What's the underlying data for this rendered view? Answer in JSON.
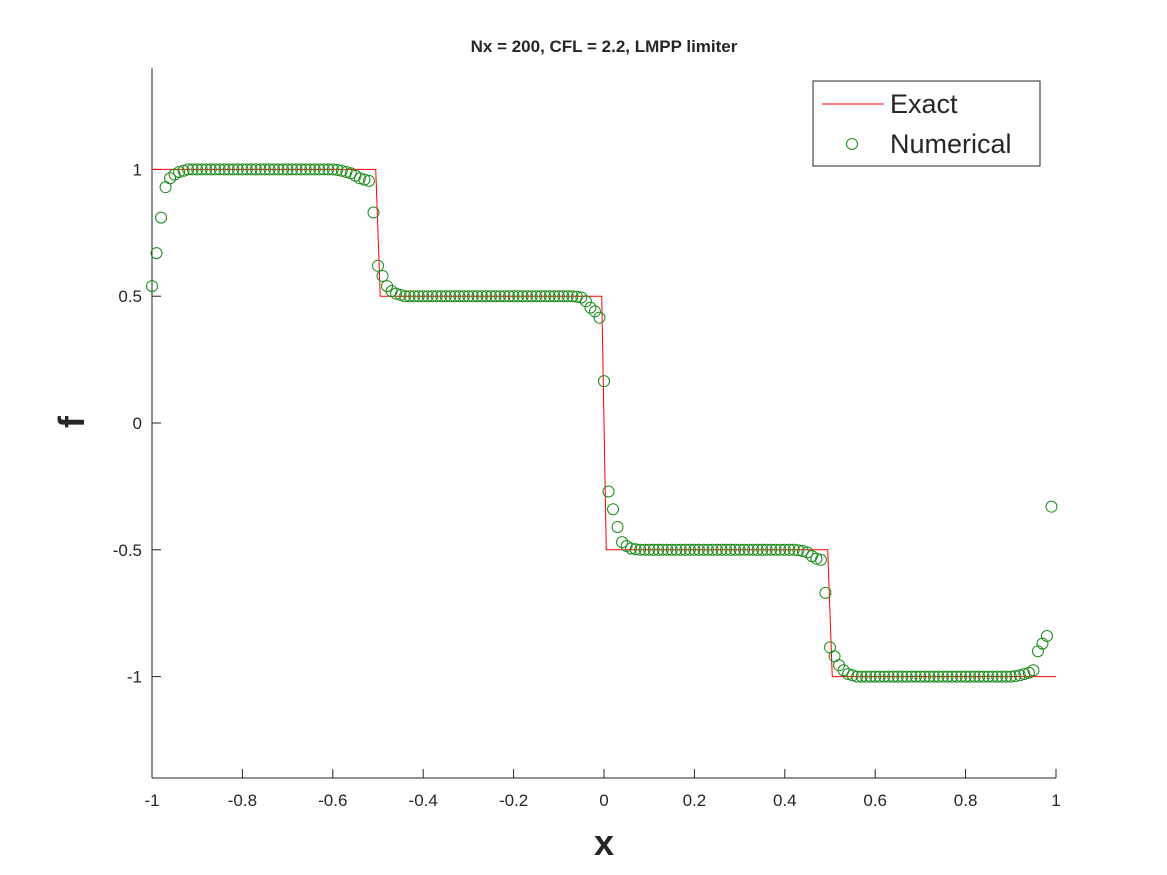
{
  "chart_data": {
    "type": "line",
    "title": "Nx = 200, CFL = 2.2, LMPP limiter",
    "x_label": "x",
    "y_label": "f",
    "xlim": [
      -1,
      1
    ],
    "ylim": [
      -1.4,
      1.4
    ],
    "xticks": [
      -1,
      -0.8,
      -0.6,
      -0.4,
      -0.2,
      0,
      0.2,
      0.4,
      0.6,
      0.8,
      1
    ],
    "yticks": [
      -1,
      -0.5,
      0,
      0.5,
      1
    ],
    "grid": false,
    "legend": "northeast",
    "series": [
      {
        "name": "Exact",
        "color": "#ff0000",
        "marker": "line",
        "x": [
          -1,
          -0.505,
          -0.495,
          -0.005,
          0.005,
          0.495,
          0.505,
          1
        ],
        "values": [
          1,
          1,
          0.5,
          0.5,
          -0.5,
          -0.5,
          -1,
          -1
        ]
      },
      {
        "name": "Numerical",
        "color": "#1a8a1a",
        "marker": "circle",
        "x": [
          -1,
          -0.99,
          -0.98,
          -0.97,
          -0.96,
          -0.95,
          -0.94,
          -0.93,
          -0.92,
          -0.91,
          -0.9,
          -0.89,
          -0.88,
          -0.87,
          -0.86,
          -0.85,
          -0.84,
          -0.83,
          -0.82,
          -0.81,
          -0.8,
          -0.79,
          -0.78,
          -0.77,
          -0.76,
          -0.75,
          -0.74,
          -0.73,
          -0.72,
          -0.71,
          -0.7,
          -0.69,
          -0.68,
          -0.67,
          -0.66,
          -0.65,
          -0.64,
          -0.63,
          -0.62,
          -0.61,
          -0.6,
          -0.59,
          -0.58,
          -0.57,
          -0.56,
          -0.55,
          -0.54,
          -0.53,
          -0.52,
          -0.51,
          -0.5,
          -0.49,
          -0.48,
          -0.47,
          -0.46,
          -0.45,
          -0.44,
          -0.43,
          -0.42,
          -0.41,
          -0.4,
          -0.39,
          -0.38,
          -0.37,
          -0.36,
          -0.35,
          -0.34,
          -0.33,
          -0.32,
          -0.31,
          -0.3,
          -0.29,
          -0.28,
          -0.27,
          -0.26,
          -0.25,
          -0.24,
          -0.23,
          -0.22,
          -0.21,
          -0.2,
          -0.19,
          -0.18,
          -0.17,
          -0.16,
          -0.15,
          -0.14,
          -0.13,
          -0.12,
          -0.11,
          -0.1,
          -0.09,
          -0.08,
          -0.07,
          -0.06,
          -0.05,
          -0.04,
          -0.03,
          -0.02,
          -0.01,
          0,
          0.01,
          0.02,
          0.03,
          0.04,
          0.05,
          0.06,
          0.07,
          0.08,
          0.09,
          0.1,
          0.11,
          0.12,
          0.13,
          0.14,
          0.15,
          0.16,
          0.17,
          0.18,
          0.19,
          0.2,
          0.21,
          0.22,
          0.23,
          0.24,
          0.25,
          0.26,
          0.27,
          0.28,
          0.29,
          0.3,
          0.31,
          0.32,
          0.33,
          0.34,
          0.35,
          0.36,
          0.37,
          0.38,
          0.39,
          0.4,
          0.41,
          0.42,
          0.43,
          0.44,
          0.45,
          0.46,
          0.47,
          0.48,
          0.49,
          0.5,
          0.51,
          0.52,
          0.53,
          0.54,
          0.55,
          0.56,
          0.57,
          0.58,
          0.59,
          0.6,
          0.61,
          0.62,
          0.63,
          0.64,
          0.65,
          0.66,
          0.67,
          0.68,
          0.69,
          0.7,
          0.71,
          0.72,
          0.73,
          0.74,
          0.75,
          0.76,
          0.77,
          0.78,
          0.79,
          0.8,
          0.81,
          0.82,
          0.83,
          0.84,
          0.85,
          0.86,
          0.87,
          0.88,
          0.89,
          0.9,
          0.91,
          0.92,
          0.93,
          0.94,
          0.95,
          0.96,
          0.97,
          0.98,
          0.99
        ],
        "values": [
          0.54,
          0.67,
          0.81,
          0.93,
          0.965,
          0.98,
          0.99,
          0.995,
          1,
          1,
          1,
          1,
          1,
          1,
          1,
          1,
          1,
          1,
          1,
          1,
          1,
          1,
          1,
          1,
          1,
          1,
          1,
          1,
          1,
          1,
          1,
          1,
          1,
          1,
          1,
          1,
          1,
          1,
          1,
          1,
          1,
          0.998,
          0.995,
          0.99,
          0.985,
          0.975,
          0.965,
          0.96,
          0.955,
          0.83,
          0.62,
          0.58,
          0.54,
          0.52,
          0.51,
          0.505,
          0.5,
          0.5,
          0.5,
          0.5,
          0.5,
          0.5,
          0.5,
          0.5,
          0.5,
          0.5,
          0.5,
          0.5,
          0.5,
          0.5,
          0.5,
          0.5,
          0.5,
          0.5,
          0.5,
          0.5,
          0.5,
          0.5,
          0.5,
          0.5,
          0.5,
          0.5,
          0.5,
          0.5,
          0.5,
          0.5,
          0.5,
          0.5,
          0.5,
          0.5,
          0.5,
          0.5,
          0.5,
          0.5,
          0.498,
          0.495,
          0.48,
          0.455,
          0.44,
          0.415,
          0.165,
          -0.27,
          -0.34,
          -0.41,
          -0.47,
          -0.485,
          -0.495,
          -0.498,
          -0.5,
          -0.5,
          -0.5,
          -0.5,
          -0.5,
          -0.5,
          -0.5,
          -0.5,
          -0.5,
          -0.5,
          -0.5,
          -0.5,
          -0.5,
          -0.5,
          -0.5,
          -0.5,
          -0.5,
          -0.5,
          -0.5,
          -0.5,
          -0.5,
          -0.5,
          -0.5,
          -0.5,
          -0.5,
          -0.5,
          -0.5,
          -0.5,
          -0.5,
          -0.5,
          -0.5,
          -0.5,
          -0.5,
          -0.5,
          -0.5,
          -0.502,
          -0.505,
          -0.51,
          -0.525,
          -0.535,
          -0.54,
          -0.67,
          -0.885,
          -0.92,
          -0.955,
          -0.975,
          -0.99,
          -0.995,
          -1,
          -1,
          -1,
          -1,
          -1,
          -1,
          -1,
          -1,
          -1,
          -1,
          -1,
          -1,
          -1,
          -1,
          -1,
          -1,
          -1,
          -1,
          -1,
          -1,
          -1,
          -1,
          -1,
          -1,
          -1,
          -1,
          -1,
          -1,
          -1,
          -1,
          -1,
          -1,
          -1,
          -1,
          -1,
          -0.998,
          -0.995,
          -0.99,
          -0.985,
          -0.975,
          -0.9,
          -0.87,
          -0.84,
          -0.33
        ]
      }
    ]
  }
}
